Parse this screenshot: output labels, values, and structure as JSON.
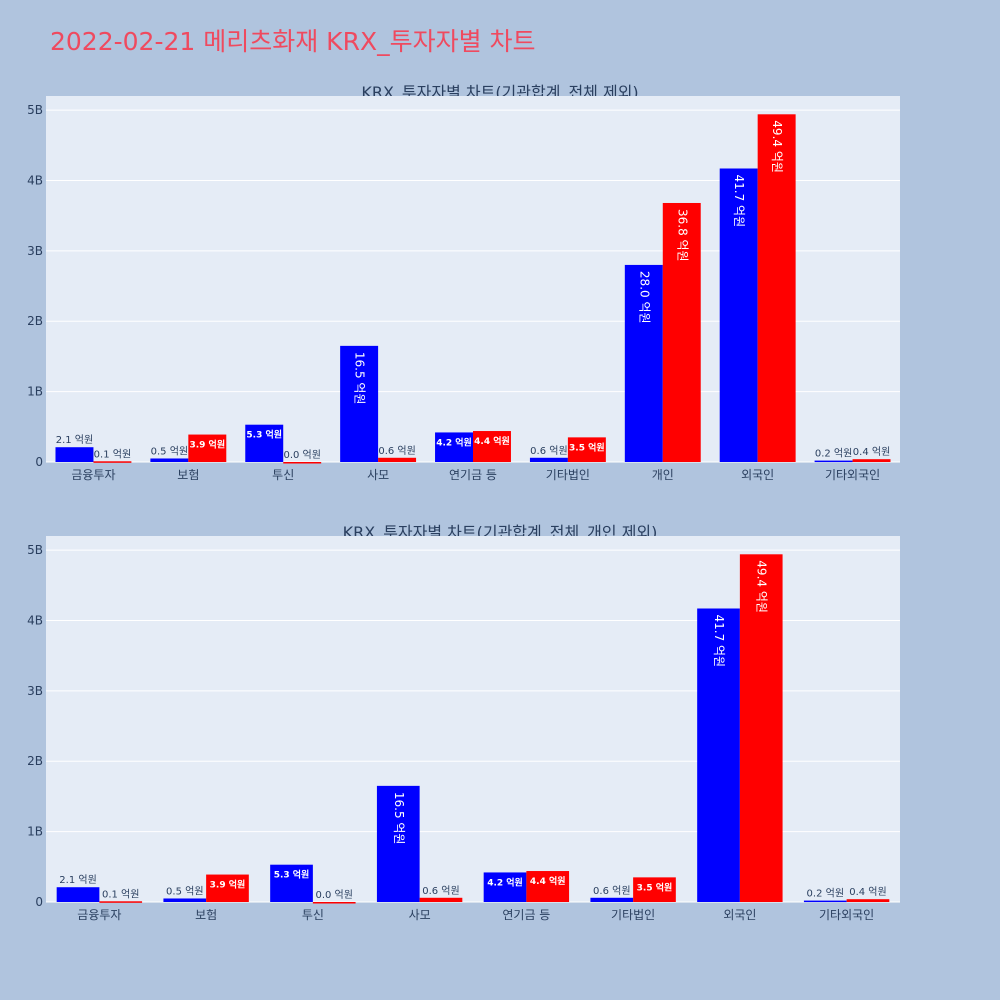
{
  "page": {
    "title": "2022-02-21 메리츠화재 KRX_투자자별 차트"
  },
  "colors": {
    "series_a": "#0000ff",
    "series_b": "#ff0000",
    "plot_bg": "#e5ecf6",
    "paper_bg": "#b0c4de",
    "title": "#ef4a5f",
    "axis_text": "#2a3f5f",
    "grid": "#ffffff"
  },
  "chart_data": [
    {
      "type": "bar",
      "title": "KRX_투자자별 차트(기관합계_전체 제외)",
      "categories": [
        "금융투자",
        "보험",
        "투신",
        "사모",
        "연기금 등",
        "기타법인",
        "개인",
        "외국인",
        "기타외국인"
      ],
      "ylim": [
        0,
        5.2
      ],
      "yticks": [
        0,
        1,
        2,
        3,
        4,
        5
      ],
      "ytick_labels": [
        "0",
        "1B",
        "2B",
        "3B",
        "4B",
        "5B"
      ],
      "grid": true,
      "legend": "none",
      "series": [
        {
          "color": "#0000ff",
          "values": [
            0.21,
            0.05,
            0.53,
            1.65,
            0.42,
            0.06,
            2.8,
            4.17,
            0.02
          ],
          "labels": [
            "2.1 억원",
            "0.5 억원",
            "5.3 억원",
            "16.5 억원",
            "4.2 억원",
            "0.6 억원",
            "28.0 억원",
            "41.7 억원",
            "0.2 억원"
          ]
        },
        {
          "color": "#ff0000",
          "values": [
            0.01,
            0.39,
            0.0,
            0.06,
            0.44,
            0.35,
            3.68,
            4.94,
            0.04
          ],
          "labels": [
            "0.1 억원",
            "3.9 억원",
            "0.0 억원",
            "0.6 억원",
            "4.4 억원",
            "3.5 억원",
            "36.8 억원",
            "49.4 억원",
            "0.4 억원"
          ]
        }
      ]
    },
    {
      "type": "bar",
      "title": "KRX_투자자별 차트(기관합계_전체_개인 제외)",
      "categories": [
        "금융투자",
        "보험",
        "투신",
        "사모",
        "연기금 등",
        "기타법인",
        "외국인",
        "기타외국인"
      ],
      "ylim": [
        0,
        5.2
      ],
      "yticks": [
        0,
        1,
        2,
        3,
        4,
        5
      ],
      "ytick_labels": [
        "0",
        "1B",
        "2B",
        "3B",
        "4B",
        "5B"
      ],
      "grid": true,
      "legend": "none",
      "series": [
        {
          "color": "#0000ff",
          "values": [
            0.21,
            0.05,
            0.53,
            1.65,
            0.42,
            0.06,
            4.17,
            0.02
          ],
          "labels": [
            "2.1 억원",
            "0.5 억원",
            "5.3 억원",
            "16.5 억원",
            "4.2 억원",
            "0.6 억원",
            "41.7 억원",
            "0.2 억원"
          ]
        },
        {
          "color": "#ff0000",
          "values": [
            0.01,
            0.39,
            0.0,
            0.06,
            0.44,
            0.35,
            4.94,
            0.04
          ],
          "labels": [
            "0.1 억원",
            "3.9 억원",
            "0.0 억원",
            "0.6 억원",
            "4.4 억원",
            "3.5 억원",
            "49.4 억원",
            "0.4 억원"
          ]
        }
      ]
    }
  ]
}
